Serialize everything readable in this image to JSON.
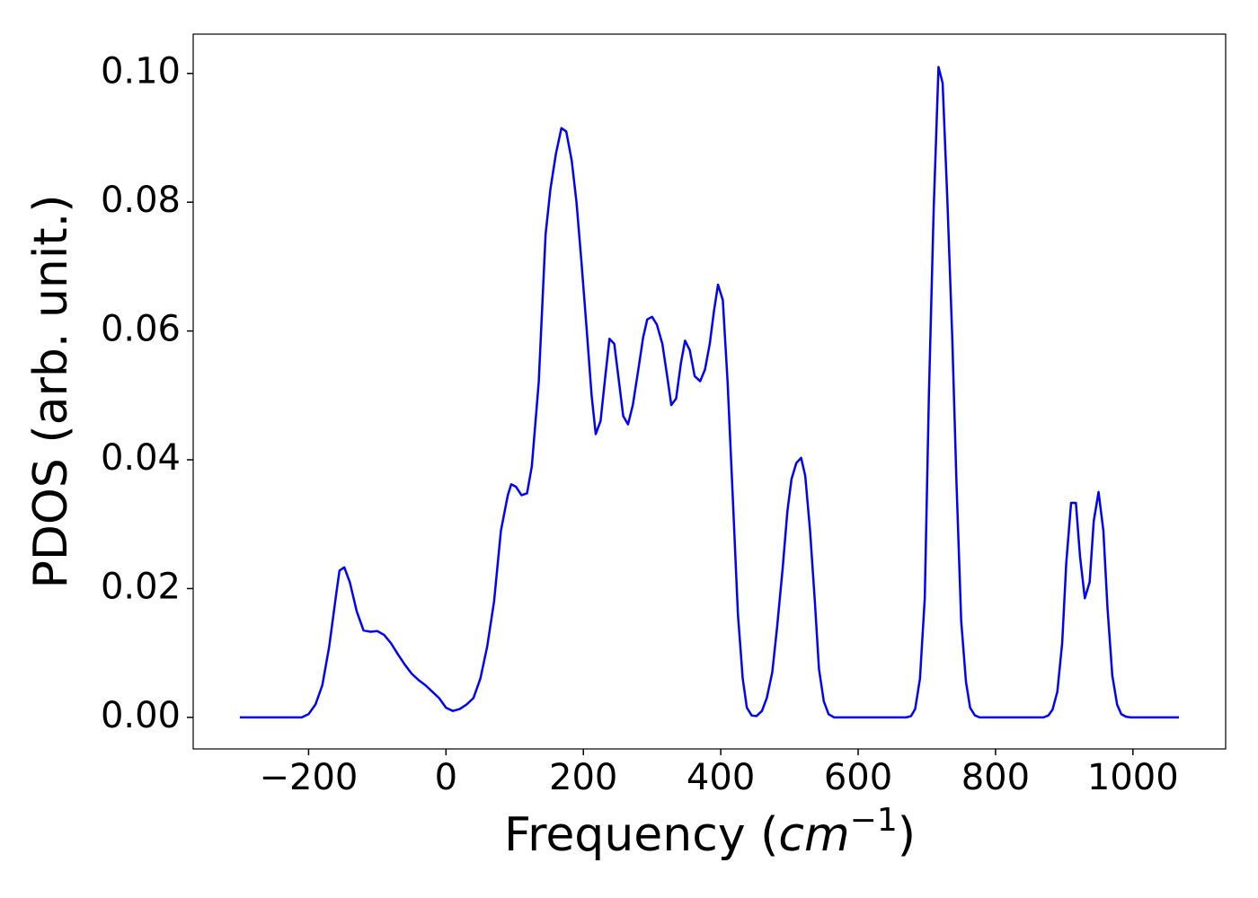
{
  "chart_data": {
    "type": "line",
    "xlabel": [
      "Frequency (",
      "cm",
      "−1",
      ")"
    ],
    "ylabel": "PDOS (arb. unit.)",
    "color": "#0000ff",
    "x": [
      -300,
      -210,
      -200,
      -190,
      -180,
      -170,
      -160,
      -155,
      -148,
      -140,
      -130,
      -120,
      -110,
      -100,
      -90,
      -80,
      -70,
      -60,
      -50,
      -40,
      -30,
      -20,
      -10,
      0,
      10,
      20,
      30,
      40,
      50,
      60,
      70,
      80,
      90,
      95,
      102,
      110,
      118,
      125,
      135,
      145,
      152,
      160,
      168,
      175,
      183,
      190,
      197,
      205,
      212,
      218,
      225,
      232,
      238,
      245,
      252,
      258,
      265,
      272,
      280,
      287,
      293,
      300,
      307,
      315,
      322,
      328,
      335,
      342,
      348,
      355,
      362,
      370,
      377,
      384,
      390,
      396,
      403,
      410,
      418,
      425,
      432,
      438,
      445,
      452,
      460,
      467,
      475,
      482,
      490,
      497,
      503,
      510,
      517,
      523,
      530,
      537,
      543,
      550,
      557,
      565,
      670,
      677,
      683,
      690,
      697,
      703,
      710,
      717,
      723,
      730,
      737,
      743,
      750,
      757,
      763,
      770,
      777,
      870,
      877,
      883,
      890,
      897,
      903,
      910,
      917,
      923,
      930,
      937,
      943,
      950,
      957,
      963,
      970,
      977,
      983,
      990,
      997,
      1067
    ],
    "values": [
      0,
      0,
      0.0005,
      0.002,
      0.005,
      0.011,
      0.019,
      0.0228,
      0.0233,
      0.021,
      0.0165,
      0.0135,
      0.0133,
      0.0134,
      0.0128,
      0.0115,
      0.0098,
      0.0082,
      0.0068,
      0.0058,
      0.005,
      0.004,
      0.003,
      0.0015,
      0.001,
      0.0013,
      0.002,
      0.003,
      0.006,
      0.011,
      0.018,
      0.029,
      0.0345,
      0.0362,
      0.0358,
      0.0345,
      0.0348,
      0.039,
      0.052,
      0.075,
      0.082,
      0.0875,
      0.0915,
      0.091,
      0.0865,
      0.08,
      0.071,
      0.06,
      0.05,
      0.044,
      0.046,
      0.053,
      0.0588,
      0.058,
      0.052,
      0.0468,
      0.0455,
      0.0485,
      0.054,
      0.059,
      0.0618,
      0.0622,
      0.061,
      0.058,
      0.053,
      0.0485,
      0.0495,
      0.055,
      0.0585,
      0.057,
      0.053,
      0.0522,
      0.054,
      0.058,
      0.063,
      0.0672,
      0.0648,
      0.052,
      0.033,
      0.016,
      0.006,
      0.0015,
      0.0003,
      0.0002,
      0.001,
      0.003,
      0.007,
      0.014,
      0.023,
      0.032,
      0.037,
      0.0395,
      0.0403,
      0.0375,
      0.029,
      0.018,
      0.0075,
      0.0025,
      0.0005,
      0,
      0,
      0.0002,
      0.0013,
      0.006,
      0.0185,
      0.05,
      0.079,
      0.101,
      0.0985,
      0.08,
      0.059,
      0.037,
      0.015,
      0.0055,
      0.0015,
      0.0003,
      0,
      0,
      0.0003,
      0.0012,
      0.004,
      0.0115,
      0.024,
      0.0333,
      0.0333,
      0.025,
      0.0185,
      0.021,
      0.0305,
      0.035,
      0.029,
      0.017,
      0.0065,
      0.002,
      0.0005,
      0.0001,
      0,
      0
    ],
    "xlim": [
      -368,
      1135
    ],
    "ylim": [
      -0.0049,
      0.1061
    ],
    "xticks": [
      {
        "value": -200,
        "label": "−200"
      },
      0,
      200,
      400,
      600,
      800,
      1000
    ],
    "yticks": [
      {
        "value": 0,
        "label": "0.00"
      },
      {
        "value": 0.02,
        "label": "0.02"
      },
      {
        "value": 0.04,
        "label": "0.04"
      },
      {
        "value": 0.06,
        "label": "0.06"
      },
      {
        "value": 0.08,
        "label": "0.08"
      },
      {
        "value": 0.1,
        "label": "0.10"
      }
    ]
  }
}
